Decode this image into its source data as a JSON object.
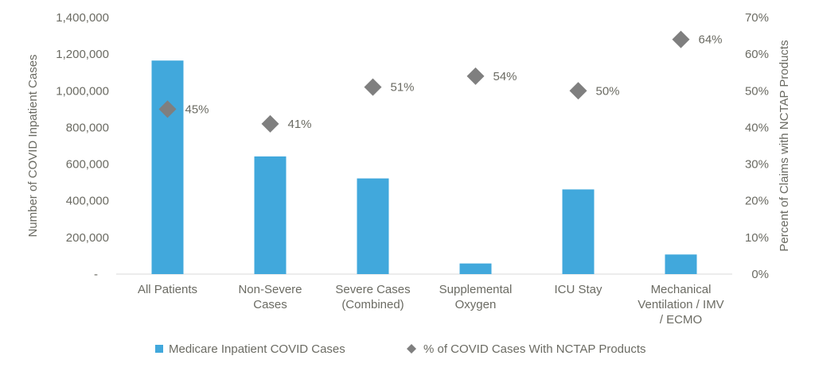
{
  "chart_data": {
    "type": "bar",
    "categories": [
      [
        "All Patients"
      ],
      [
        "Non-Severe",
        "Cases"
      ],
      [
        "Severe Cases",
        "(Combined)"
      ],
      [
        "Supplemental",
        "Oxygen"
      ],
      [
        "ICU Stay"
      ],
      [
        "Mechanical",
        "Ventilation / IMV",
        "/ ECMO"
      ]
    ],
    "series": [
      {
        "name": "Medicare Inpatient COVID Cases",
        "type": "bar",
        "axis": "left",
        "color": "#41a8dc",
        "values": [
          1165000,
          642000,
          522000,
          58000,
          462000,
          107000
        ]
      },
      {
        "name": "% of COVID Cases With NCTAP Products",
        "type": "scatter",
        "marker": "diamond",
        "axis": "right",
        "color": "#7f7f7f",
        "values": [
          45,
          41,
          51,
          54,
          50,
          64
        ],
        "labels": [
          "45%",
          "41%",
          "51%",
          "54%",
          "50%",
          "64%"
        ]
      }
    ],
    "ylabel": "Number of COVID Inpatient Cases",
    "y2label": "Percent of Claims with NCTAP Products",
    "ylim": [
      0,
      1400000
    ],
    "y2lim": [
      0,
      70
    ],
    "yticks": [
      "-",
      "200,000",
      "400,000",
      "600,000",
      "800,000",
      "1,000,000",
      "1,200,000",
      "1,400,000"
    ],
    "y2ticks": [
      "0%",
      "10%",
      "20%",
      "30%",
      "40%",
      "50%",
      "60%",
      "70%"
    ],
    "grid": false,
    "legend_position": "bottom"
  }
}
